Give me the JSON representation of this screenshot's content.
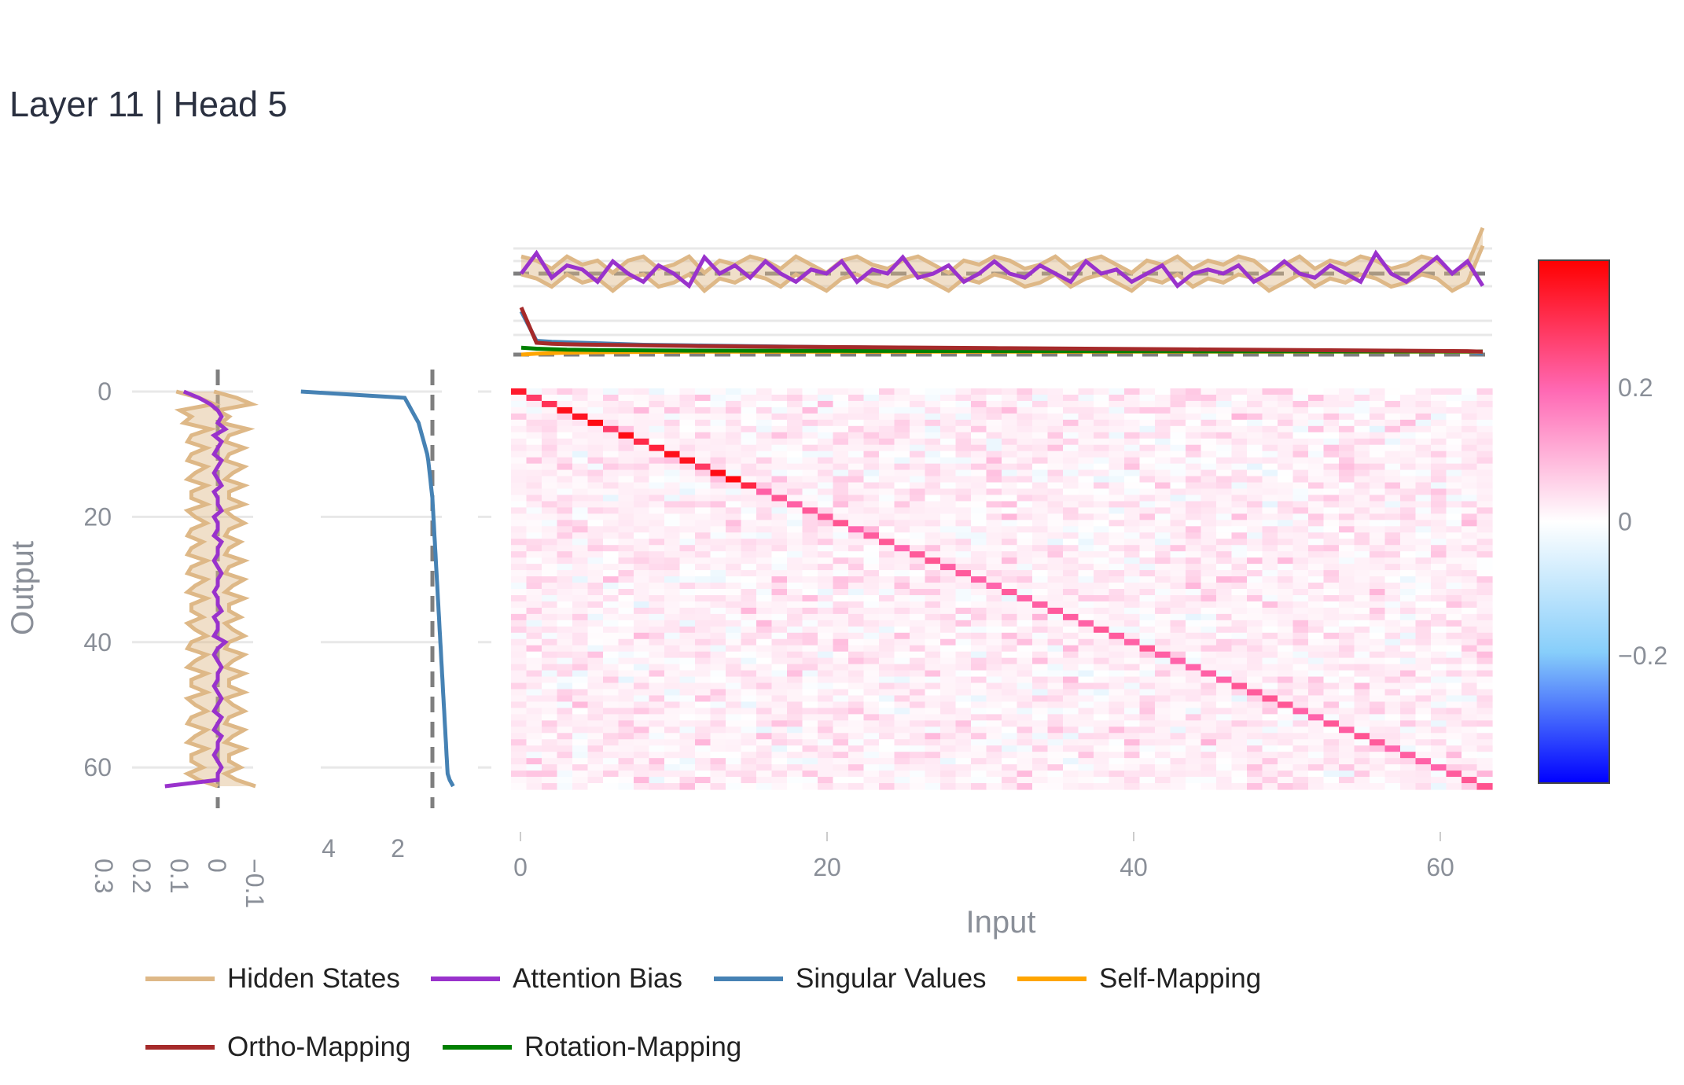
{
  "title": "Layer 11 | Head 5",
  "colors": {
    "hidden_states": "#deb887",
    "attention_bias": "#9932cc",
    "singular_values": "#4682b4",
    "self_mapping": "#ffa500",
    "ortho_mapping": "#a52a2a",
    "rotation_mapping": "#008000"
  },
  "legend": [
    {
      "label": "Hidden States",
      "color": "#deb887"
    },
    {
      "label": "Attention Bias",
      "color": "#9932cc"
    },
    {
      "label": "Singular Values",
      "color": "#4682b4"
    },
    {
      "label": "Self-Mapping",
      "color": "#ffa500"
    },
    {
      "label": "Ortho-Mapping",
      "color": "#a52a2a"
    },
    {
      "label": "Rotation-Mapping",
      "color": "#008000"
    }
  ],
  "chart_data": [
    {
      "type": "heatmap",
      "xlabel": "Input",
      "ylabel": "Output",
      "x_ticks": [
        "0",
        "20",
        "40",
        "60"
      ],
      "y_ticks": [
        "0",
        "20",
        "40",
        "60"
      ],
      "x_range": [
        0,
        63
      ],
      "y_range": [
        0,
        63
      ],
      "diagonal_value_range": [
        0.2,
        0.38
      ],
      "off_diagonal_value_range": [
        -0.08,
        0.1
      ],
      "colorscale": [
        "#0000ff",
        "#87cefa",
        "#ffffff",
        "#ff69b4",
        "#ff0000"
      ],
      "colorbar": {
        "ticks": [
          "0.2",
          "0",
          "−0.2"
        ],
        "tick_values": [
          0.2,
          0,
          -0.2
        ],
        "range": [
          -0.39,
          0.39
        ]
      }
    },
    {
      "type": "line",
      "panel": "top-marginal",
      "series": [
        {
          "name": "Hidden States",
          "values": [
            0.02,
            0.01,
            -0.01,
            0.02,
            0.0,
            0.01,
            -0.02,
            0.01,
            0.02,
            -0.01,
            0.0,
            0.02,
            -0.02,
            0.01,
            0.0,
            0.02,
            0.01,
            -0.01,
            0.02,
            0.0,
            -0.02,
            0.01,
            0.02,
            0.0,
            -0.01,
            0.01,
            0.02,
            0.0,
            -0.02,
            0.01,
            0.0,
            0.02,
            0.01,
            -0.01,
            0.0,
            0.02,
            -0.01,
            0.01,
            0.02,
            0.0,
            -0.02,
            0.01,
            0.0,
            0.02,
            -0.01,
            0.01,
            0.0,
            0.02,
            0.01,
            -0.02,
            0.0,
            0.02,
            -0.01,
            0.01,
            0.0,
            0.02,
            0.01,
            -0.01,
            0.0,
            0.02,
            0.01,
            -0.02,
            0.0,
            0.09
          ]
        },
        {
          "name": "Attention Bias",
          "values": [
            0.0,
            0.05,
            -0.01,
            0.02,
            0.01,
            -0.02,
            0.03,
            0.0,
            -0.02,
            0.02,
            0.0,
            -0.03,
            0.04,
            0.0,
            0.02,
            -0.01,
            0.03,
            0.0,
            -0.02,
            0.01,
            0.0,
            0.03,
            -0.02,
            0.01,
            0.0,
            0.04,
            -0.01,
            0.0,
            0.02,
            -0.02,
            0.0,
            0.03,
            0.0,
            -0.01,
            0.02,
            0.0,
            -0.02,
            0.03,
            0.0,
            0.01,
            -0.02,
            0.0,
            0.02,
            -0.03,
            0.0,
            0.01,
            0.0,
            0.02,
            -0.02,
            0.0,
            0.03,
            0.0,
            -0.01,
            0.02,
            0.0,
            -0.02,
            0.05,
            0.0,
            -0.02,
            0.01,
            0.04,
            0.0,
            0.03,
            -0.03
          ]
        },
        {
          "name": "Singular Values",
          "values": [
            4.8,
            1.8,
            1.7,
            1.65,
            1.6,
            1.55,
            1.5,
            1.45,
            1.4,
            1.38,
            1.36,
            1.34,
            1.32,
            1.3,
            1.28,
            1.26,
            1.24,
            1.22,
            1.2,
            1.18,
            1.16,
            1.15,
            1.14,
            1.12,
            1.1,
            1.09,
            1.08,
            1.06,
            1.05,
            1.04,
            1.02,
            1.01,
            1.0,
            0.99,
            0.98,
            0.97,
            0.96,
            0.95,
            0.94,
            0.93,
            0.92,
            0.91,
            0.9,
            0.89,
            0.88,
            0.87,
            0.86,
            0.85,
            0.84,
            0.83,
            0.82,
            0.81,
            0.8,
            0.79,
            0.78,
            0.77,
            0.76,
            0.75,
            0.74,
            0.73,
            0.72,
            0.71,
            0.7,
            0.5
          ]
        },
        {
          "name": "Self-Mapping",
          "values": [
            0.4,
            0.5,
            0.55,
            0.6,
            0.62,
            0.64,
            0.65,
            0.66,
            0.67,
            0.68,
            0.69,
            0.7,
            0.7,
            0.7,
            0.7,
            0.7,
            0.7,
            0.7,
            0.7,
            0.7,
            0.7,
            0.7,
            0.7,
            0.7,
            0.7,
            0.7,
            0.7,
            0.7,
            0.7,
            0.7,
            0.7,
            0.7,
            0.7,
            0.7,
            0.7,
            0.7,
            0.7,
            0.7,
            0.7,
            0.7,
            0.7,
            0.7,
            0.7,
            0.7,
            0.7,
            0.7,
            0.7,
            0.7,
            0.7,
            0.7,
            0.7,
            0.7,
            0.7,
            0.7,
            0.7,
            0.7,
            0.7,
            0.7,
            0.7,
            0.7,
            0.7,
            0.7,
            0.7,
            0.7
          ]
        },
        {
          "name": "Ortho-Mapping",
          "values": [
            5.2,
            1.6,
            1.5,
            1.45,
            1.42,
            1.4,
            1.38,
            1.36,
            1.34,
            1.32,
            1.3,
            1.28,
            1.26,
            1.25,
            1.24,
            1.22,
            1.21,
            1.2,
            1.19,
            1.18,
            1.17,
            1.16,
            1.15,
            1.14,
            1.13,
            1.12,
            1.11,
            1.1,
            1.09,
            1.08,
            1.07,
            1.06,
            1.05,
            1.04,
            1.03,
            1.02,
            1.01,
            1.0,
            0.99,
            0.98,
            0.97,
            0.96,
            0.95,
            0.94,
            0.93,
            0.92,
            0.91,
            0.9,
            0.89,
            0.88,
            0.87,
            0.86,
            0.85,
            0.84,
            0.83,
            0.82,
            0.81,
            0.8,
            0.79,
            0.78,
            0.77,
            0.76,
            0.75,
            0.7
          ]
        },
        {
          "name": "Rotation-Mapping",
          "values": [
            1.1,
            1.0,
            0.95,
            0.9,
            0.88,
            0.86,
            0.85,
            0.84,
            0.83,
            0.82,
            0.81,
            0.8,
            0.8,
            0.8,
            0.8,
            0.79,
            0.79,
            0.79,
            0.78,
            0.78,
            0.78,
            0.78,
            0.77,
            0.77,
            0.77,
            0.77,
            0.76,
            0.76,
            0.76,
            0.76,
            0.76,
            0.75,
            0.75,
            0.75,
            0.75,
            0.75,
            0.75,
            0.75,
            0.74,
            0.74,
            0.74,
            0.74,
            0.74,
            0.74,
            0.74,
            0.73,
            0.73,
            0.73,
            0.73,
            0.73,
            0.73,
            0.73,
            0.73,
            0.72,
            0.72,
            0.72,
            0.72,
            0.72,
            0.72,
            0.72,
            0.72,
            0.72,
            0.72,
            0.72
          ]
        }
      ]
    },
    {
      "type": "line",
      "panel": "left-marginal-1",
      "x_ticks": [
        "0.3",
        "0.2",
        "0.1",
        "0",
        "−0.1"
      ],
      "x_tick_values": [
        0.3,
        0.2,
        0.1,
        0,
        -0.1
      ],
      "series": [
        {
          "name": "Hidden States",
          "values": [
            0.06,
            0.0,
            -0.04,
            0.05,
            0.02,
            0.04,
            -0.03,
            0.02,
            0.03,
            -0.02,
            0.02,
            0.03,
            -0.02,
            0.01,
            0.03,
            -0.02,
            0.02,
            0.02,
            -0.02,
            0.03,
            0.01,
            -0.02,
            0.02,
            0.03,
            -0.01,
            0.02,
            0.03,
            -0.02,
            0.02,
            0.03,
            -0.02,
            0.01,
            0.03,
            -0.02,
            0.02,
            0.02,
            -0.01,
            0.03,
            0.01,
            -0.02,
            0.02,
            0.03,
            -0.02,
            0.01,
            0.03,
            -0.02,
            0.02,
            0.02,
            -0.02,
            0.03,
            0.01,
            -0.02,
            0.02,
            0.03,
            -0.02,
            0.01,
            0.03,
            -0.02,
            0.02,
            0.02,
            -0.01,
            0.03,
            0.0,
            -0.05
          ]
        },
        {
          "name": "Attention Bias",
          "values": [
            0.09,
            0.05,
            0.02,
            0.0,
            -0.01,
            0.0,
            -0.02,
            0.01,
            -0.01,
            0.0,
            0.01,
            -0.01,
            0.0,
            0.01,
            0.0,
            -0.01,
            0.01,
            0.0,
            0.0,
            -0.01,
            0.01,
            0.0,
            0.0,
            0.01,
            -0.01,
            0.0,
            0.0,
            0.01,
            0.0,
            -0.01,
            0.0,
            0.0,
            0.01,
            0.0,
            0.0,
            -0.01,
            0.01,
            0.0,
            0.0,
            0.01,
            -0.02,
            0.0,
            0.01,
            0.0,
            -0.01,
            0.0,
            0.0,
            0.01,
            0.0,
            -0.01,
            0.0,
            0.01,
            -0.01,
            0.0,
            0.01,
            -0.01,
            0.0,
            0.0,
            0.01,
            0.0,
            -0.01,
            0.0,
            0.0,
            0.14
          ]
        }
      ]
    },
    {
      "type": "line",
      "panel": "left-marginal-2",
      "x_ticks": [
        "4",
        "2"
      ],
      "x_tick_values": [
        4,
        2
      ],
      "series": [
        {
          "name": "Singular Values",
          "values": [
            4.8,
            1.8,
            1.7,
            1.6,
            1.5,
            1.4,
            1.35,
            1.3,
            1.25,
            1.2,
            1.15,
            1.12,
            1.1,
            1.08,
            1.06,
            1.04,
            1.02,
            1.0,
            0.99,
            0.98,
            0.97,
            0.96,
            0.95,
            0.94,
            0.93,
            0.92,
            0.91,
            0.9,
            0.89,
            0.88,
            0.87,
            0.86,
            0.85,
            0.84,
            0.83,
            0.82,
            0.81,
            0.8,
            0.79,
            0.78,
            0.77,
            0.76,
            0.75,
            0.74,
            0.73,
            0.72,
            0.71,
            0.7,
            0.69,
            0.68,
            0.67,
            0.66,
            0.65,
            0.64,
            0.63,
            0.62,
            0.61,
            0.6,
            0.59,
            0.58,
            0.57,
            0.56,
            0.5,
            0.4
          ]
        }
      ]
    }
  ]
}
